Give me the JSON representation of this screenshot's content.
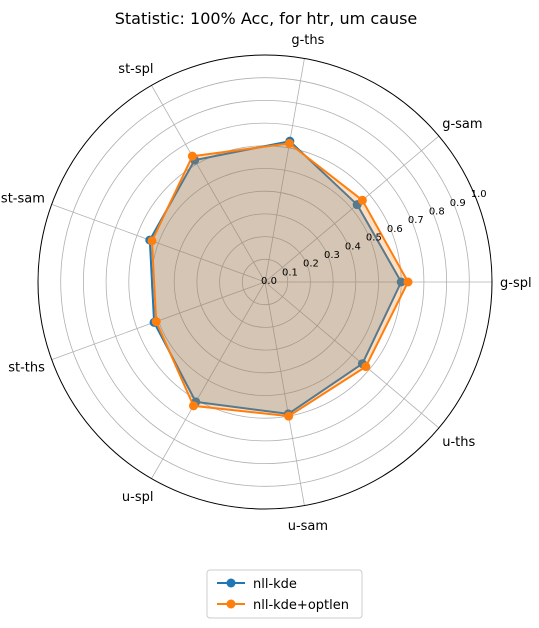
{
  "chart_data": {
    "type": "radar",
    "title": "Statistic: 100% Acc, for htr, um cause",
    "axes": [
      "g-spl",
      "g-sam",
      "g-ths",
      "st-spl",
      "st-sam",
      "st-ths",
      "u-spl",
      "u-sam",
      "u-ths"
    ],
    "radial_ticks": [
      "0.0",
      "0.1",
      "0.2",
      "0.3",
      "0.4",
      "0.5",
      "0.6",
      "0.7",
      "0.8",
      "0.9",
      "1.0"
    ],
    "rlim": [
      0,
      1.0
    ],
    "grid": true,
    "legend_position": "bottom-center",
    "series": [
      {
        "name": "nll-kde",
        "color": "#1f77b4",
        "values": [
          0.6,
          0.53,
          0.63,
          0.62,
          0.54,
          0.52,
          0.61,
          0.59,
          0.56
        ]
      },
      {
        "name": "nll-kde+optlen",
        "color": "#ff7f0e",
        "values": [
          0.63,
          0.56,
          0.62,
          0.64,
          0.53,
          0.51,
          0.63,
          0.6,
          0.58
        ]
      }
    ]
  }
}
